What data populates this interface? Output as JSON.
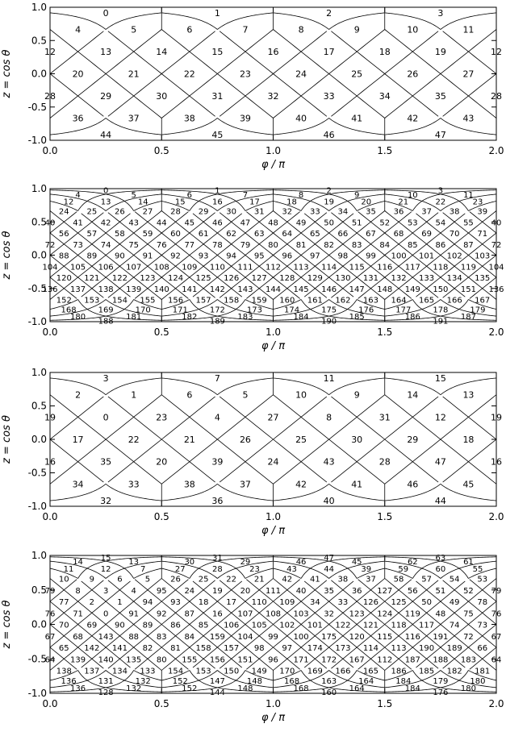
{
  "figure": {
    "xlabel": "φ / π",
    "ylabel": "z = cos θ",
    "xticks": [
      "0.0",
      "0.5",
      "1.0",
      "1.5",
      "2.0"
    ],
    "yticks": [
      "1.0",
      "0.5",
      "0.0",
      "-0.5",
      "-1.0"
    ]
  },
  "chart_data": [
    {
      "type": "diagram",
      "scheme": "RING",
      "nside": 2,
      "ordering": "ring",
      "xlim": [
        0,
        2
      ],
      "ylim": [
        -1,
        1
      ]
    },
    {
      "type": "diagram",
      "scheme": "RING",
      "nside": 4,
      "ordering": "ring",
      "xlim": [
        0,
        2
      ],
      "ylim": [
        -1,
        1
      ]
    },
    {
      "type": "diagram",
      "scheme": "NESTED",
      "nside": 2,
      "ordering": "nested",
      "xlim": [
        0,
        2
      ],
      "ylim": [
        -1,
        1
      ]
    },
    {
      "type": "diagram",
      "scheme": "NESTED",
      "nside": 4,
      "ordering": "nested",
      "xlim": [
        0,
        2
      ],
      "ylim": [
        -1,
        1
      ]
    }
  ]
}
